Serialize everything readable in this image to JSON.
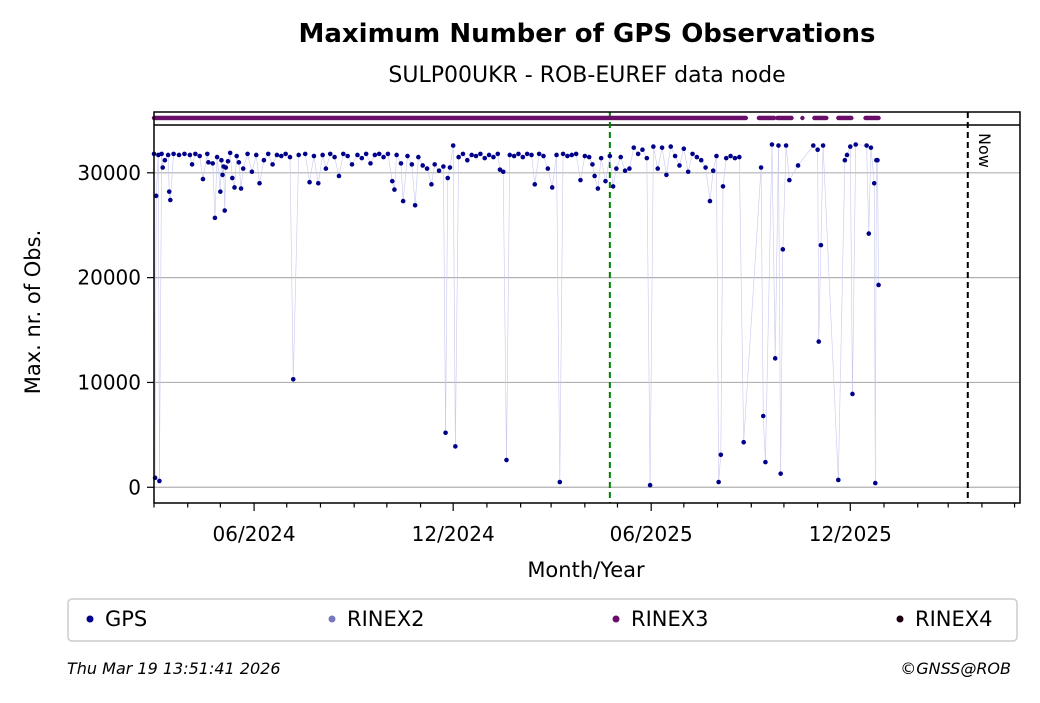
{
  "chart_data": {
    "type": "scatter",
    "title": "Maximum Number of GPS Observations",
    "subtitle": "SULP00UKR - ROB-EUREF data node",
    "xlabel": "Month/Year",
    "ylabel": "Max. nr. of Obs.",
    "x_tick_labels": [
      "06/2024",
      "12/2024",
      "06/2025",
      "12/2025"
    ],
    "y_ticks": [
      0,
      10000,
      20000,
      30000
    ],
    "y_tick_labels": [
      "0",
      "10000",
      "20000",
      "30000"
    ],
    "x_range": [
      "2024-03-01",
      "2026-05-06"
    ],
    "ylim": [
      -1500,
      35800
    ],
    "vertical_markers": [
      {
        "date": "2025-04-24",
        "style": "dashed-green",
        "label": ""
      },
      {
        "date": "2026-03-19",
        "style": "dashed-black",
        "label": "Now"
      }
    ],
    "series": [
      {
        "name": "GPS",
        "color": "#00008b",
        "points": [
          [
            "2024-03-01",
            31800
          ],
          [
            "2024-03-02",
            900
          ],
          [
            "2024-03-03",
            27800
          ],
          [
            "2024-03-05",
            31700
          ],
          [
            "2024-03-06",
            600
          ],
          [
            "2024-03-08",
            31800
          ],
          [
            "2024-03-09",
            30500
          ],
          [
            "2024-03-11",
            31200
          ],
          [
            "2024-03-14",
            31700
          ],
          [
            "2024-03-15",
            28200
          ],
          [
            "2024-03-16",
            27400
          ],
          [
            "2024-03-19",
            31800
          ],
          [
            "2024-03-24",
            31700
          ],
          [
            "2024-03-29",
            31800
          ],
          [
            "2024-04-03",
            31700
          ],
          [
            "2024-04-05",
            30800
          ],
          [
            "2024-04-08",
            31800
          ],
          [
            "2024-04-12",
            31600
          ],
          [
            "2024-04-15",
            29400
          ],
          [
            "2024-04-19",
            31800
          ],
          [
            "2024-04-20",
            31000
          ],
          [
            "2024-04-24",
            30900
          ],
          [
            "2024-04-26",
            25700
          ],
          [
            "2024-04-28",
            31500
          ],
          [
            "2024-05-01",
            28200
          ],
          [
            "2024-05-02",
            31200
          ],
          [
            "2024-05-03",
            29800
          ],
          [
            "2024-05-04",
            30600
          ],
          [
            "2024-05-05",
            26400
          ],
          [
            "2024-05-06",
            30500
          ],
          [
            "2024-05-08",
            31100
          ],
          [
            "2024-05-10",
            31900
          ],
          [
            "2024-05-12",
            29500
          ],
          [
            "2024-05-14",
            28600
          ],
          [
            "2024-05-16",
            31600
          ],
          [
            "2024-05-18",
            31000
          ],
          [
            "2024-05-20",
            28500
          ],
          [
            "2024-05-22",
            30400
          ],
          [
            "2024-05-26",
            31800
          ],
          [
            "2024-05-30",
            30100
          ],
          [
            "2024-06-03",
            31700
          ],
          [
            "2024-06-06",
            29000
          ],
          [
            "2024-06-10",
            31200
          ],
          [
            "2024-06-14",
            31800
          ],
          [
            "2024-06-18",
            30800
          ],
          [
            "2024-06-22",
            31700
          ],
          [
            "2024-06-26",
            31600
          ],
          [
            "2024-06-30",
            31800
          ],
          [
            "2024-07-04",
            31500
          ],
          [
            "2024-07-07",
            10300
          ],
          [
            "2024-07-12",
            31700
          ],
          [
            "2024-07-18",
            31800
          ],
          [
            "2024-07-22",
            29100
          ],
          [
            "2024-07-26",
            31600
          ],
          [
            "2024-07-30",
            29000
          ],
          [
            "2024-08-03",
            31700
          ],
          [
            "2024-08-06",
            30400
          ],
          [
            "2024-08-10",
            31800
          ],
          [
            "2024-08-14",
            31500
          ],
          [
            "2024-08-18",
            29700
          ],
          [
            "2024-08-22",
            31800
          ],
          [
            "2024-08-26",
            31600
          ],
          [
            "2024-08-30",
            30800
          ],
          [
            "2024-09-04",
            31700
          ],
          [
            "2024-09-08",
            31400
          ],
          [
            "2024-09-12",
            31800
          ],
          [
            "2024-09-16",
            30900
          ],
          [
            "2024-09-20",
            31700
          ],
          [
            "2024-09-24",
            31800
          ],
          [
            "2024-09-28",
            31500
          ],
          [
            "2024-10-02",
            31800
          ],
          [
            "2024-10-06",
            29200
          ],
          [
            "2024-10-08",
            28400
          ],
          [
            "2024-10-10",
            31700
          ],
          [
            "2024-10-14",
            30900
          ],
          [
            "2024-10-16",
            27300
          ],
          [
            "2024-10-20",
            31600
          ],
          [
            "2024-10-24",
            30800
          ],
          [
            "2024-10-27",
            26900
          ],
          [
            "2024-10-30",
            31500
          ],
          [
            "2024-11-03",
            30700
          ],
          [
            "2024-11-07",
            30400
          ],
          [
            "2024-11-11",
            28900
          ],
          [
            "2024-11-14",
            30800
          ],
          [
            "2024-11-18",
            30200
          ],
          [
            "2024-11-22",
            30600
          ],
          [
            "2024-11-24",
            5200
          ],
          [
            "2024-11-26",
            29500
          ],
          [
            "2024-11-28",
            30500
          ],
          [
            "2024-12-01",
            32600
          ],
          [
            "2024-12-03",
            3900
          ],
          [
            "2024-12-06",
            31500
          ],
          [
            "2024-12-10",
            31800
          ],
          [
            "2024-12-14",
            31200
          ],
          [
            "2024-12-18",
            31700
          ],
          [
            "2024-12-22",
            31600
          ],
          [
            "2024-12-26",
            31800
          ],
          [
            "2024-12-30",
            31400
          ],
          [
            "2025-01-03",
            31700
          ],
          [
            "2025-01-07",
            31500
          ],
          [
            "2025-01-11",
            31800
          ],
          [
            "2025-01-13",
            30300
          ],
          [
            "2025-01-16",
            30100
          ],
          [
            "2025-01-19",
            2600
          ],
          [
            "2025-01-22",
            31700
          ],
          [
            "2025-01-26",
            31600
          ],
          [
            "2025-01-30",
            31800
          ],
          [
            "2025-02-03",
            31500
          ],
          [
            "2025-02-07",
            31800
          ],
          [
            "2025-02-11",
            31700
          ],
          [
            "2025-02-14",
            28900
          ],
          [
            "2025-02-18",
            31800
          ],
          [
            "2025-02-22",
            31600
          ],
          [
            "2025-02-26",
            30400
          ],
          [
            "2025-03-02",
            28600
          ],
          [
            "2025-03-06",
            31700
          ],
          [
            "2025-03-09",
            500
          ],
          [
            "2025-03-12",
            31800
          ],
          [
            "2025-03-16",
            31600
          ],
          [
            "2025-03-20",
            31700
          ],
          [
            "2025-03-24",
            31800
          ],
          [
            "2025-03-28",
            29300
          ],
          [
            "2025-04-01",
            31600
          ],
          [
            "2025-04-05",
            31500
          ],
          [
            "2025-04-08",
            30800
          ],
          [
            "2025-04-10",
            29700
          ],
          [
            "2025-04-13",
            28500
          ],
          [
            "2025-04-16",
            31400
          ],
          [
            "2025-04-20",
            29200
          ],
          [
            "2025-04-24",
            31600
          ],
          [
            "2025-04-27",
            28700
          ],
          [
            "2025-04-30",
            30400
          ],
          [
            "2025-05-04",
            31500
          ],
          [
            "2025-05-08",
            30200
          ],
          [
            "2025-05-12",
            30400
          ],
          [
            "2025-05-16",
            32400
          ],
          [
            "2025-05-20",
            31800
          ],
          [
            "2025-05-24",
            32200
          ],
          [
            "2025-05-28",
            31400
          ],
          [
            "2025-05-31",
            200
          ],
          [
            "2025-06-03",
            32500
          ],
          [
            "2025-06-07",
            30400
          ],
          [
            "2025-06-11",
            32400
          ],
          [
            "2025-06-15",
            29800
          ],
          [
            "2025-06-19",
            32500
          ],
          [
            "2025-06-23",
            31600
          ],
          [
            "2025-06-27",
            30700
          ],
          [
            "2025-07-01",
            32300
          ],
          [
            "2025-07-05",
            30100
          ],
          [
            "2025-07-09",
            31800
          ],
          [
            "2025-07-13",
            31500
          ],
          [
            "2025-07-17",
            31200
          ],
          [
            "2025-07-21",
            30500
          ],
          [
            "2025-07-25",
            27300
          ],
          [
            "2025-07-28",
            30200
          ],
          [
            "2025-07-31",
            31600
          ],
          [
            "2025-08-02",
            500
          ],
          [
            "2025-08-04",
            3100
          ],
          [
            "2025-08-06",
            28700
          ],
          [
            "2025-08-09",
            31400
          ],
          [
            "2025-08-13",
            31600
          ],
          [
            "2025-08-17",
            31400
          ],
          [
            "2025-08-21",
            31500
          ],
          [
            "2025-08-25",
            4300
          ],
          [
            "2025-09-10",
            30500
          ],
          [
            "2025-09-12",
            6800
          ],
          [
            "2025-09-14",
            2400
          ],
          [
            "2025-09-20",
            32700
          ],
          [
            "2025-09-23",
            12300
          ],
          [
            "2025-09-26",
            32600
          ],
          [
            "2025-09-28",
            1300
          ],
          [
            "2025-09-30",
            22700
          ],
          [
            "2025-10-03",
            32600
          ],
          [
            "2025-10-06",
            29300
          ],
          [
            "2025-10-14",
            30700
          ],
          [
            "2025-10-28",
            32600
          ],
          [
            "2025-11-01",
            32200
          ],
          [
            "2025-11-02",
            13900
          ],
          [
            "2025-11-04",
            23100
          ],
          [
            "2025-11-06",
            32600
          ],
          [
            "2025-11-20",
            700
          ],
          [
            "2025-11-26",
            31200
          ],
          [
            "2025-11-28",
            31700
          ],
          [
            "2025-12-01",
            32500
          ],
          [
            "2025-12-03",
            8900
          ],
          [
            "2025-12-06",
            32700
          ],
          [
            "2025-12-16",
            32600
          ],
          [
            "2025-12-18",
            24200
          ],
          [
            "2025-12-20",
            32400
          ],
          [
            "2025-12-23",
            29000
          ],
          [
            "2025-12-24",
            400
          ],
          [
            "2025-12-25",
            31200
          ],
          [
            "2025-12-26",
            31200
          ],
          [
            "2025-12-27",
            19300
          ]
        ]
      },
      {
        "name": "RINEX2",
        "color": "#7777bb",
        "points": []
      },
      {
        "name": "RINEX3",
        "color": "#6a0f6a",
        "y": 35000,
        "ranges": [
          [
            "2024-03-01",
            "2025-08-27"
          ],
          [
            "2025-09-08",
            "2025-09-22"
          ],
          [
            "2025-09-25",
            "2025-10-08"
          ],
          [
            "2025-10-18",
            "2025-10-18"
          ],
          [
            "2025-10-29",
            "2025-11-09"
          ],
          [
            "2025-11-20",
            "2025-12-02"
          ],
          [
            "2025-12-15",
            "2025-12-27"
          ]
        ]
      },
      {
        "name": "RINEX4",
        "color": "#1a0010",
        "points": []
      }
    ]
  },
  "legend": {
    "items": [
      {
        "label": "GPS",
        "color": "#00008b"
      },
      {
        "label": "RINEX2",
        "color": "#7777bb"
      },
      {
        "label": "RINEX3",
        "color": "#6a0f6a"
      },
      {
        "label": "RINEX4",
        "color": "#1a0010"
      }
    ]
  },
  "footer": {
    "timestamp": "Thu Mar 19 13:51:41 2026",
    "copyright": "©GNSS@ROB"
  }
}
